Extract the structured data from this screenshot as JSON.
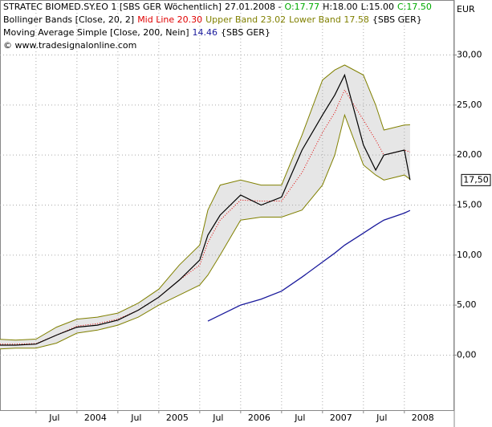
{
  "chart_data": {
    "type": "line",
    "title": "STRATEC BIOMED.SY.EO 1 [SBS GER  Wöchentlich]",
    "date": "27.01.2008 -",
    "ohlc": [
      "O:17.77",
      "H:18.00",
      "L:15.00",
      "C:17.50"
    ],
    "bollinger_label": "Bollinger Bands [Close, 20, 2]",
    "ma_label": "Moving Average Simple [Close, 200, Nein]",
    "ma_last": "14.46",
    "exchange": "{SBS GER}",
    "copyright": "© www.tradesignalonline.com",
    "currency": "EUR",
    "last_price_label": "17,50",
    "x": [
      2003.0,
      2003.25,
      2003.5,
      2003.75,
      2004.0,
      2004.25,
      2004.5,
      2004.75,
      2005.0,
      2005.25,
      2005.5,
      2005.6,
      2005.75,
      2006.0,
      2006.25,
      2006.5,
      2006.75,
      2007.0,
      2007.15,
      2007.27,
      2007.5,
      2007.65,
      2007.75,
      2008.0,
      2008.07
    ],
    "series": [
      {
        "name": "Upper Band 23.02",
        "color": "#808000",
        "role": "upper",
        "values": [
          1.6,
          1.5,
          1.6,
          2.8,
          3.6,
          3.8,
          4.2,
          5.2,
          6.6,
          9.0,
          11.0,
          14.5,
          17.0,
          17.5,
          17.0,
          17.0,
          22.0,
          27.5,
          28.5,
          29.0,
          28.0,
          25.0,
          22.5,
          23.0,
          23.02
        ]
      },
      {
        "name": "Lower Band 17.58",
        "color": "#808000",
        "role": "lower",
        "values": [
          0.6,
          0.7,
          0.7,
          1.2,
          2.2,
          2.5,
          3.0,
          3.8,
          5.0,
          6.0,
          7.0,
          8.0,
          10.0,
          13.5,
          13.8,
          13.8,
          14.5,
          17.0,
          20.0,
          24.0,
          19.0,
          18.0,
          17.5,
          18.0,
          17.58
        ]
      },
      {
        "name": "Mid Line 20.30",
        "color": "#e00000",
        "role": "mid",
        "values": [
          1.1,
          1.1,
          1.15,
          2.0,
          2.9,
          3.15,
          3.6,
          4.5,
          5.8,
          7.5,
          9.0,
          11.25,
          13.5,
          15.5,
          15.4,
          15.4,
          18.25,
          22.25,
          24.25,
          26.5,
          23.5,
          21.5,
          20.0,
          20.5,
          20.3
        ]
      },
      {
        "name": "STRATEC BIOMED.SY.EO 1",
        "color": "#000000",
        "role": "close",
        "values": [
          1.0,
          1.0,
          1.1,
          2.0,
          2.8,
          3.0,
          3.5,
          4.5,
          5.8,
          7.5,
          9.5,
          12.0,
          14.0,
          16.0,
          15.0,
          15.8,
          20.5,
          24.0,
          26.0,
          28.0,
          21.0,
          18.5,
          20.0,
          20.5,
          17.5
        ]
      },
      {
        "name": "Moving Average Simple",
        "color": "#1a1a9c",
        "role": "ma",
        "values": [
          null,
          null,
          null,
          null,
          null,
          null,
          null,
          null,
          null,
          null,
          null,
          3.4,
          4.0,
          5.0,
          5.6,
          6.4,
          7.8,
          9.3,
          10.2,
          11.0,
          12.2,
          13.0,
          13.5,
          14.2,
          14.46
        ]
      }
    ],
    "xlim": [
      2003.06,
      2008.6
    ],
    "xticks": [
      {
        "value": 2003.5,
        "label": "Jul"
      },
      {
        "value": 2004,
        "label": "2004"
      },
      {
        "value": 2004.5,
        "label": "Jul"
      },
      {
        "value": 2005,
        "label": "2005"
      },
      {
        "value": 2005.5,
        "label": "Jul"
      },
      {
        "value": 2006,
        "label": "2006"
      },
      {
        "value": 2006.5,
        "label": "Jul"
      },
      {
        "value": 2007,
        "label": "2007"
      },
      {
        "value": 2007.5,
        "label": "Jul"
      },
      {
        "value": 2008,
        "label": "2008"
      }
    ],
    "ylim": [
      -5.5,
      35.5
    ],
    "yticks": [
      {
        "value": 0,
        "label": "0,00"
      },
      {
        "value": 5,
        "label": "5,00"
      },
      {
        "value": 10,
        "label": "10,00"
      },
      {
        "value": 15,
        "label": "15,00"
      },
      {
        "value": 20,
        "label": "20,00"
      },
      {
        "value": 25,
        "label": "25,00"
      },
      {
        "value": 30,
        "label": "30,00"
      }
    ],
    "grid": true,
    "band_fill": "#e6e6e6"
  }
}
